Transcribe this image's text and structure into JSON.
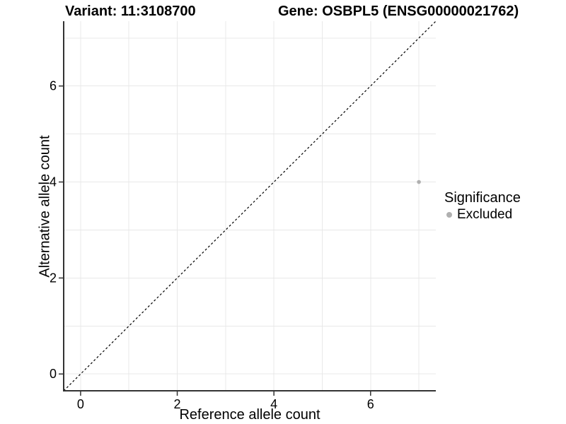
{
  "chart_data": {
    "type": "scatter",
    "title_left": "Variant: 11:3108700",
    "title_right": "Gene: OSBPL5 (ENSG00000021762)",
    "xlabel": "Reference allele count",
    "ylabel": "Alternative allele count",
    "xlim": [
      -0.35,
      7.35
    ],
    "ylim": [
      -0.35,
      7.35
    ],
    "xticks": [
      0,
      2,
      4,
      6
    ],
    "yticks": [
      0,
      2,
      4,
      6
    ],
    "grid": true,
    "grid_values": [
      0,
      1,
      2,
      3,
      4,
      5,
      6,
      7
    ],
    "points": [
      {
        "x": 7,
        "y": 4,
        "significance": "Excluded"
      }
    ],
    "reference_line": {
      "kind": "identity y=x",
      "style": "dashed",
      "color": "#000000"
    },
    "legend": {
      "title": "Significance",
      "position": "right",
      "items": [
        {
          "label": "Excluded",
          "color": "#b0b0b0"
        }
      ]
    },
    "colors": {
      "point": "#b0b0b0",
      "grid": "#e8e8e8",
      "axis": "#333333",
      "text": "#000000",
      "background": "#ffffff"
    }
  }
}
